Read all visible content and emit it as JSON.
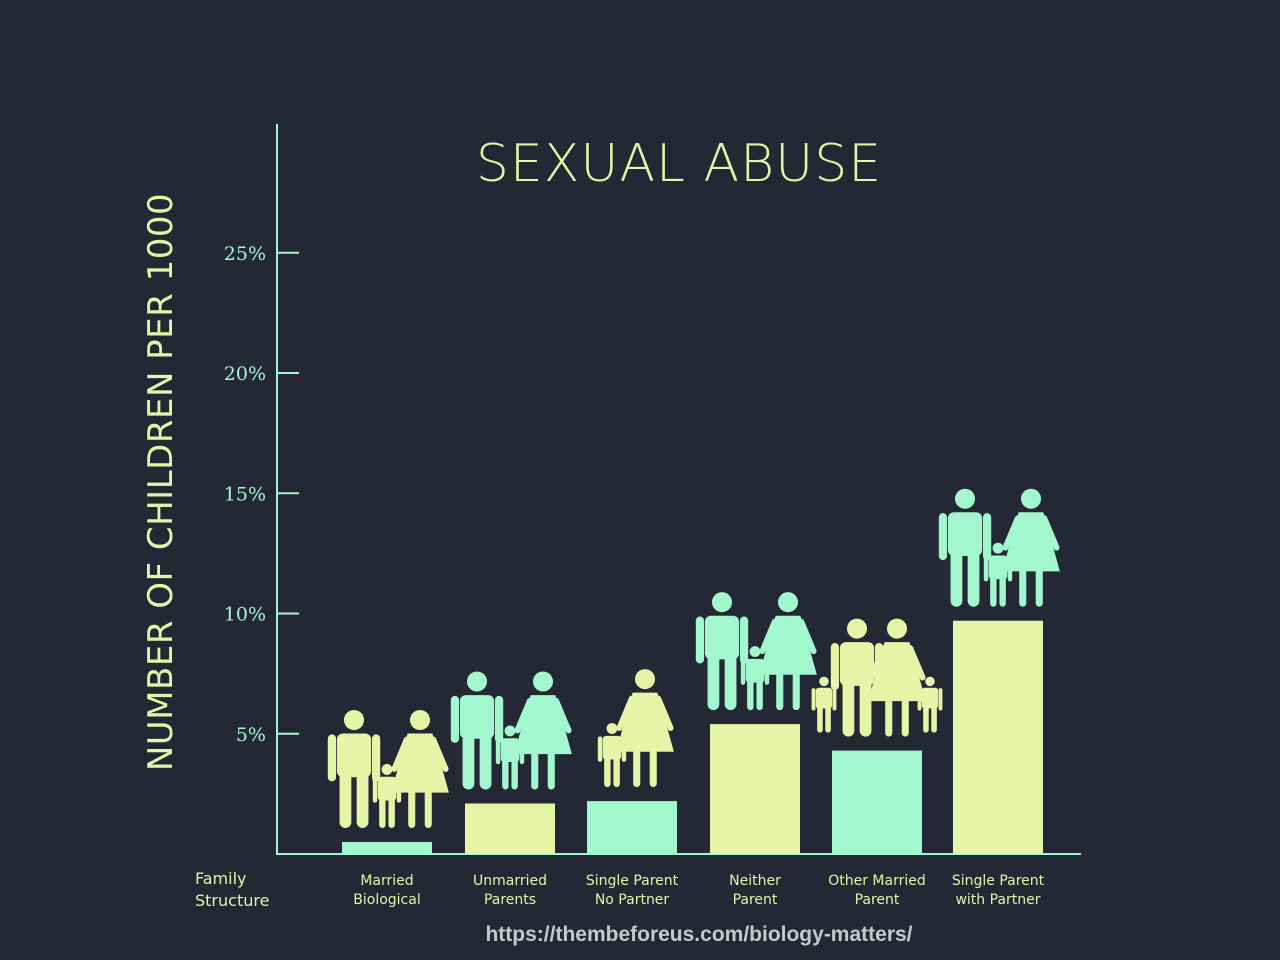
{
  "chart_data": {
    "type": "bar",
    "title": "SEXUAL ABUSE",
    "ylabel": "NUMBER OF CHILDREN PER 1000",
    "xlabel": "Family Structure",
    "ylim": [
      0,
      30
    ],
    "yticks": [
      5,
      10,
      15,
      20,
      25
    ],
    "ytick_labels": [
      "5%",
      "10%",
      "15%",
      "20%",
      "25%"
    ],
    "categories": [
      [
        "Married",
        "Biological"
      ],
      [
        "Unmarried",
        "Parents"
      ],
      [
        "Single Parent",
        "No Partner"
      ],
      [
        "Neither",
        "Parent"
      ],
      [
        "Other Married",
        "Parent"
      ],
      [
        "Single Parent",
        "with Partner"
      ]
    ],
    "values": [
      0.5,
      2.1,
      2.2,
      5.4,
      4.3,
      9.7
    ],
    "bar_colors": [
      "#a3f7cf",
      "#e7f3a6",
      "#a3f7cf",
      "#e7f3a6",
      "#a3f7cf",
      "#e7f3a6"
    ],
    "icon_colors": [
      "#e7f3a6",
      "#a3f7cf",
      "#e7f3a6",
      "#a3f7cf",
      "#e7f3a6",
      "#a3f7cf"
    ],
    "icon_groups": [
      [
        "man",
        "child",
        "woman"
      ],
      [
        "man",
        "child",
        "woman"
      ],
      [
        "child",
        "woman"
      ],
      [
        "man",
        "child",
        "woman"
      ],
      [
        "child",
        "man",
        "woman",
        "child"
      ],
      [
        "man",
        "child",
        "woman"
      ]
    ],
    "grid": false,
    "legend": "none"
  },
  "source": "https://thembeforeus.com/biology-matters/",
  "colors": {
    "background": "#242734",
    "mint": "#a3f7cf",
    "yellow": "#e7f3a6",
    "source": "#c8c8c8"
  }
}
